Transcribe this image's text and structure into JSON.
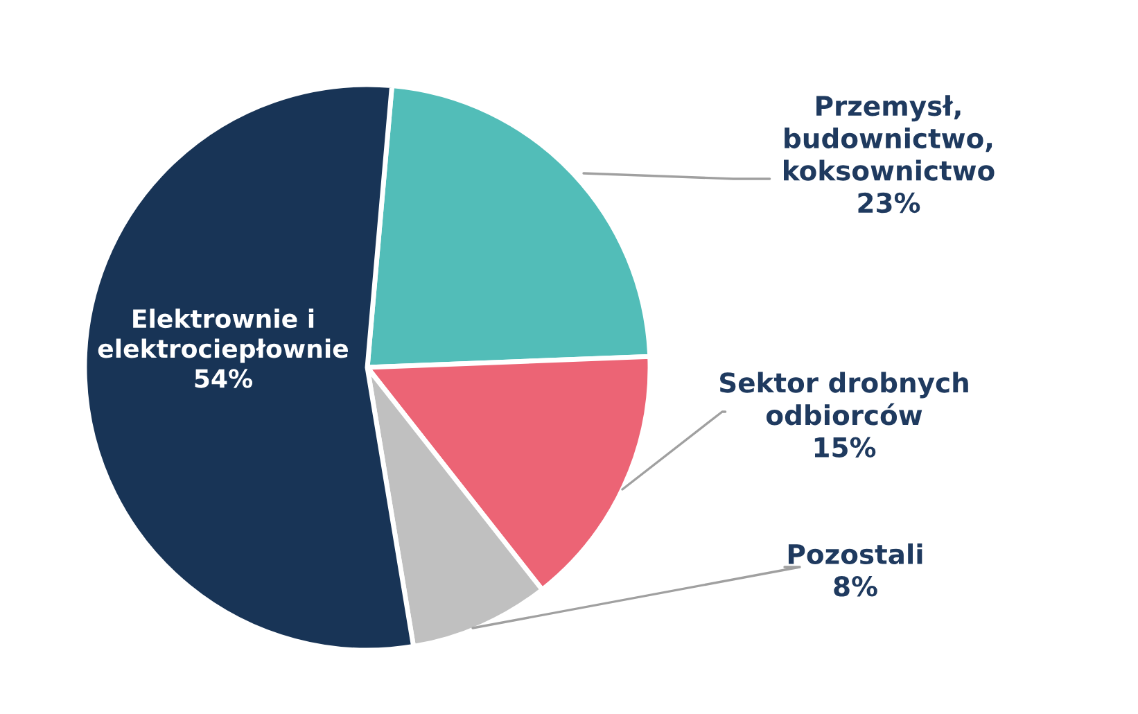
{
  "chart_data": {
    "type": "pie",
    "categories": [
      "Przemysł,\nbudownictwo,\nkoksownictwo",
      "Sektor drobnych\nodbiorców",
      "Pozostali",
      "Elektrownie i\nelektrociepłownie"
    ],
    "values": [
      23,
      15,
      8,
      54
    ],
    "value_labels": [
      "23%",
      "15%",
      "8%",
      "54%"
    ],
    "colors": [
      "#52bdb8",
      "#ec6475",
      "#c0c0c0",
      "#183456"
    ],
    "legend": false
  }
}
